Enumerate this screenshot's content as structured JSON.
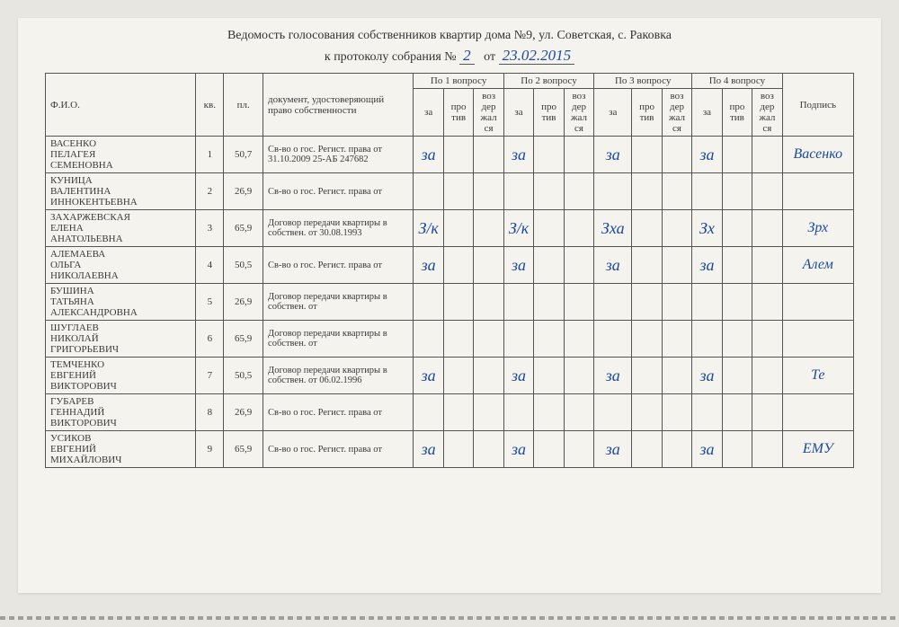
{
  "header": {
    "line1": "Ведомость голосования собственников квартир дома №9, ул. Советская, с. Раковка",
    "line2_prefix": "к протоколу собрания №",
    "protocol_no": "2",
    "line2_mid": "от",
    "date": "23.02.2015"
  },
  "columns": {
    "fio": "Ф.И.О.",
    "kv": "кв.",
    "pl": "пл.",
    "doc": "документ, удостоверяющий право собственности",
    "q1": "По 1 вопросу",
    "q2": "По 2 вопросу",
    "q3": "По 3 вопросу",
    "q4": "По 4 вопросу",
    "za": "за",
    "protiv": "про\nтив",
    "vozd": "воз\nдер\nжал\nся",
    "sign": "Подпись"
  },
  "rows": [
    {
      "name": "ВАСЕНКО\nПЕЛАГЕЯ\nСЕМЕНОВНА",
      "kv": "1",
      "pl": "50,7",
      "doc": "Св-во о гос. Регист. права  от 31.10.2009 25-АБ 247682",
      "v1": "за",
      "v2": "за",
      "v3": "за",
      "v4": "за",
      "sign": "Васенко"
    },
    {
      "name": "КУНИЦА\nВАЛЕНТИНА\nИННОКЕНТЬЕВНА",
      "kv": "2",
      "pl": "26,9",
      "doc": "Св-во о гос. Регист. права  от",
      "v1": "",
      "v2": "",
      "v3": "",
      "v4": "",
      "sign": ""
    },
    {
      "name": "ЗАХАРЖЕВСКАЯ\nЕЛЕНА\nАНАТОЛЬЕВНА",
      "kv": "3",
      "pl": "65,9",
      "doc": "  Договор передачи квартиры в собствен.  от 30.08.1993",
      "v1": "З/к",
      "v2": "З/к",
      "v3": "Зха",
      "v4": "Зх",
      "sign": "Зрх"
    },
    {
      "name": "АЛЕМАЕВА\nОЛЬГА\nНИКОЛАЕВНА",
      "kv": "4",
      "pl": "50,5",
      "doc": "Св-во о гос. Регист. права  от",
      "v1": "за",
      "v2": "за",
      "v3": "за",
      "v4": "за",
      "sign": "Алем"
    },
    {
      "name": "БУШИНА\nТАТЬЯНА\nАЛЕКСАНДРОВНА",
      "kv": "5",
      "pl": "26,9",
      "doc": "  Договор передачи квартиры в собствен.  от",
      "v1": "",
      "v2": "",
      "v3": "",
      "v4": "",
      "sign": ""
    },
    {
      "name": "ШУГЛАЕВ\nНИКОЛАЙ\nГРИГОРЬЕВИЧ",
      "kv": "6",
      "pl": "65,9",
      "doc": "  Договор передачи квартиры в собствен.  от",
      "v1": "",
      "v2": "",
      "v3": "",
      "v4": "",
      "sign": ""
    },
    {
      "name": "ТЕМЧЕНКО\nЕВГЕНИЙ\nВИКТОРОВИЧ",
      "kv": "7",
      "pl": "50,5",
      "doc": "  Договор передачи квартиры в собствен.  от 06.02.1996",
      "v1": "за",
      "v2": "за",
      "v3": "за",
      "v4": "за",
      "sign": "Те"
    },
    {
      "name": "ГУБАРЕВ\nГЕННАДИЙ\nВИКТОРОВИЧ",
      "kv": "8",
      "pl": "26,9",
      "doc": "Св-во о гос. Регист. права  от",
      "v1": "",
      "v2": "",
      "v3": "",
      "v4": "",
      "sign": ""
    },
    {
      "name": "УСИКОВ\nЕВГЕНИЙ\nМИХАЙЛОВИЧ",
      "kv": "9",
      "pl": "65,9",
      "doc": "Св-во о гос. Регист. права  от",
      "v1": "за",
      "v2": "за",
      "v3": "за",
      "v4": "за",
      "sign": "ЕМУ"
    }
  ],
  "style": {
    "handwrite_color": "#1a4a9c",
    "border_color": "#555",
    "text_color": "#3a3a3a",
    "paper_bg": "#f5f3ed",
    "body_bg": "#e8e6e0",
    "header_fontsize": 14,
    "table_fontsize": 11
  }
}
